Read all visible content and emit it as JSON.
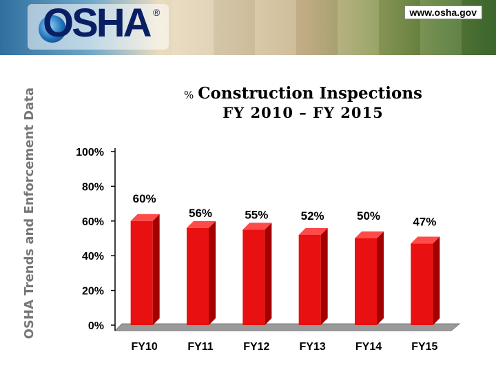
{
  "header": {
    "logo_text": "OSHA",
    "logo_mark": "®",
    "url": "www.osha.gov"
  },
  "side_title": "OSHA Trends and Enforcement Data",
  "chart_data": {
    "type": "bar",
    "title_prefix": "%",
    "title": "Construction Inspections",
    "subtitle": "FY 2010 – FY 2015",
    "categories": [
      "FY10",
      "FY11",
      "FY12",
      "FY13",
      "FY14",
      "FY15"
    ],
    "values": [
      60,
      56,
      55,
      52,
      50,
      47
    ],
    "data_labels": [
      "60%",
      "56%",
      "55%",
      "52%",
      "50%",
      "47%"
    ],
    "ylim": [
      0,
      100
    ],
    "yticks": [
      "0%",
      "20%",
      "40%",
      "60%",
      "80%",
      "100%"
    ],
    "ytick_values": [
      0,
      20,
      40,
      60,
      80,
      100
    ],
    "bar_color": "#e81010",
    "bar_shade_color": "#a30000",
    "floor_color": "#9a9a9a",
    "grid": false,
    "legend": "none"
  }
}
